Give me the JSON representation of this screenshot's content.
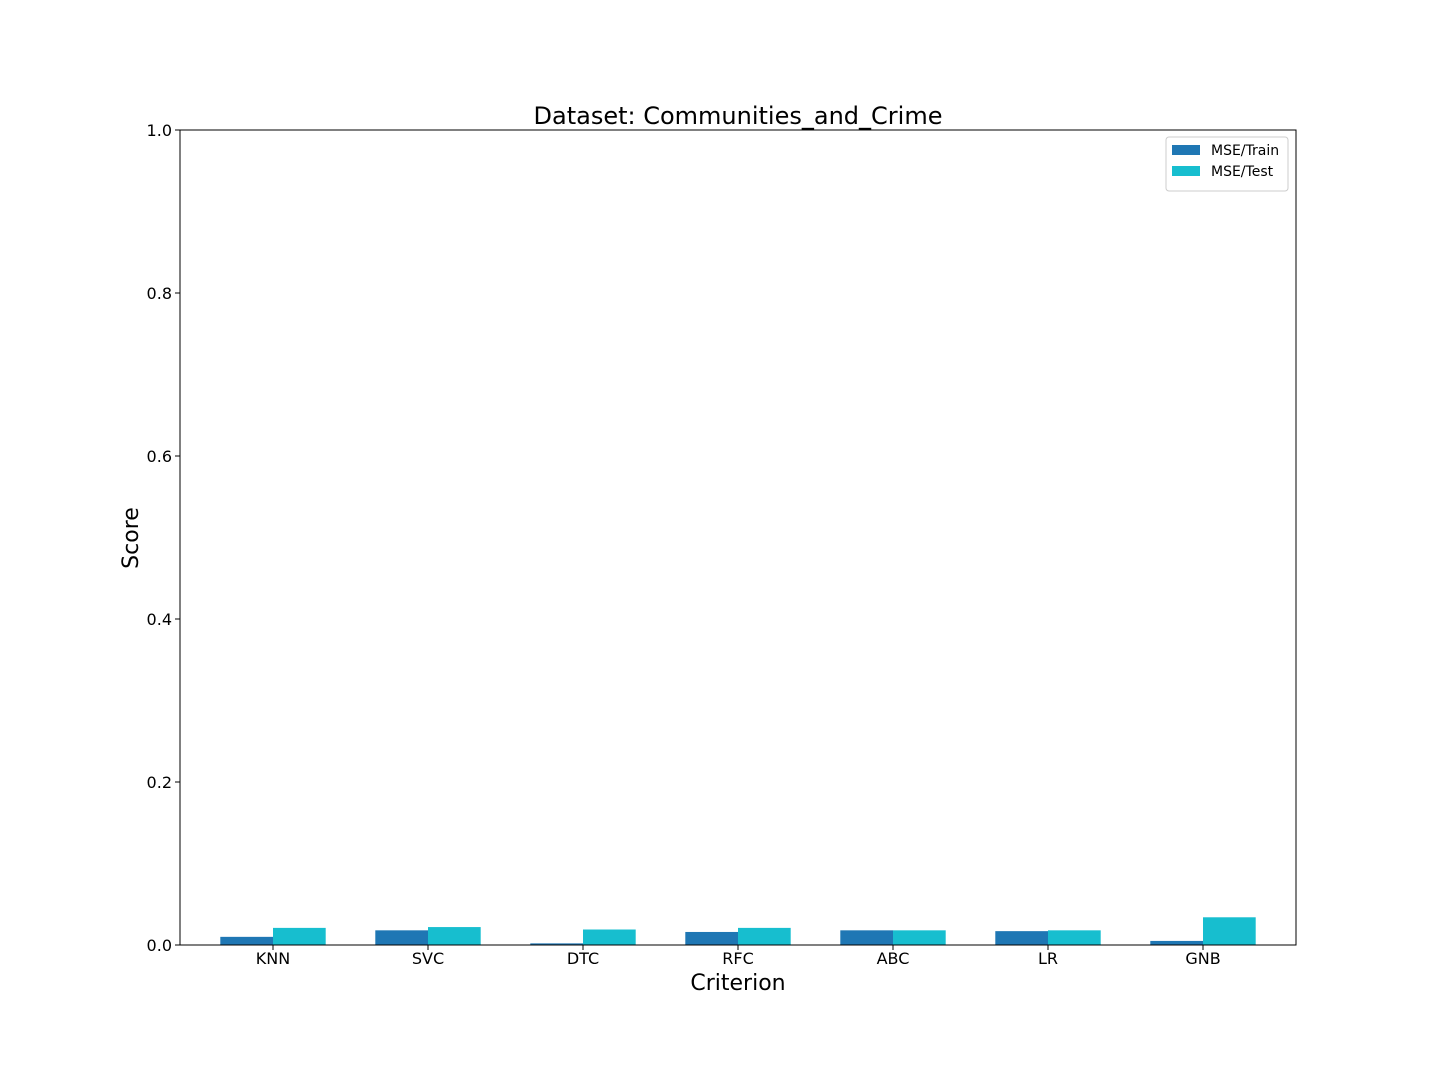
{
  "chart_data": {
    "type": "bar",
    "title": "Dataset: Communities_and_Crime",
    "xlabel": "Criterion",
    "ylabel": "Score",
    "categories": [
      "KNN",
      "SVC",
      "DTC",
      "RFC",
      "ABC",
      "LR",
      "GNB"
    ],
    "series": [
      {
        "name": "MSE/Train",
        "color": "#1f77b4",
        "values": [
          0.01,
          0.018,
          0.002,
          0.016,
          0.018,
          0.017,
          0.005
        ]
      },
      {
        "name": "MSE/Test",
        "color": "#17becf",
        "values": [
          0.021,
          0.022,
          0.019,
          0.021,
          0.018,
          0.018,
          0.034
        ]
      }
    ],
    "ylim": [
      0,
      1.0
    ],
    "yticks": [
      "0.0",
      "0.2",
      "0.4",
      "0.6",
      "0.8",
      "1.0"
    ],
    "grid": false,
    "legend_position": "top-right"
  }
}
